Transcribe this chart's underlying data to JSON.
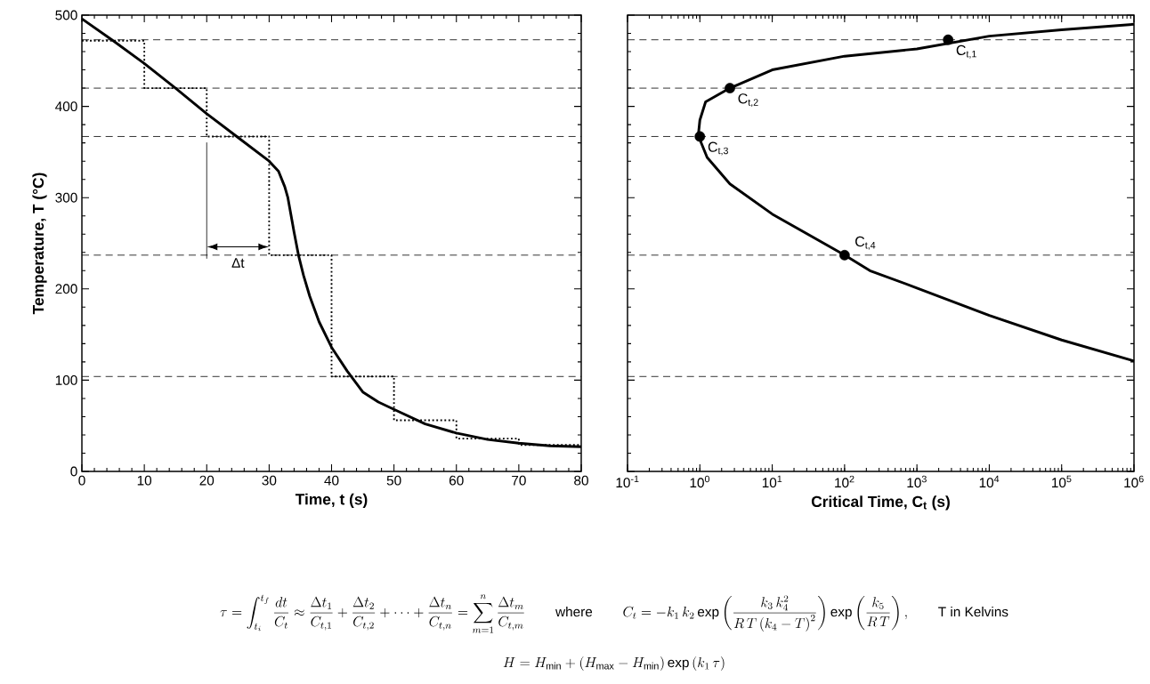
{
  "chart_data": [
    {
      "type": "line",
      "xlabel": "Time, t (s)",
      "ylabel": "Temperature, T (°C)",
      "xlim": [
        0,
        80
      ],
      "ylim": [
        0,
        500
      ],
      "xticks": [
        0,
        10,
        20,
        30,
        40,
        50,
        60,
        70,
        80
      ],
      "yticks": [
        0,
        100,
        200,
        300,
        400,
        500
      ],
      "series": [
        {
          "color": "#000000",
          "line_style": "solid",
          "x": [
            0,
            5,
            10,
            15,
            20,
            25,
            30,
            31.5,
            32.5,
            33,
            34,
            34.7,
            35.5,
            36.5,
            38,
            40,
            42.5,
            45,
            47.5,
            50,
            55,
            60,
            65,
            70,
            75,
            80
          ],
          "values": [
            496,
            472,
            447,
            420,
            392,
            366,
            340,
            329,
            312,
            300,
            262,
            237,
            215,
            192,
            164,
            136,
            110,
            87,
            76,
            68,
            52,
            42,
            35,
            31,
            28,
            27
          ]
        },
        {
          "type": "step",
          "color": "#000000",
          "line_style": "dotted",
          "x": [
            0,
            10,
            20,
            30,
            40,
            50,
            60,
            70,
            80
          ],
          "values": [
            472,
            420,
            367,
            237,
            104,
            56,
            36,
            29,
            29
          ]
        }
      ],
      "ref_lines": [
        {
          "axis": "y",
          "value": 473,
          "line_style": "dashed"
        },
        {
          "axis": "y",
          "value": 420,
          "line_style": "dashed"
        },
        {
          "axis": "y",
          "value": 367,
          "line_style": "dashed"
        },
        {
          "axis": "y",
          "value": 237,
          "line_style": "dashed"
        },
        {
          "axis": "y",
          "value": 104,
          "line_style": "dashed"
        }
      ],
      "annotations": [
        "Δt"
      ]
    },
    {
      "type": "line",
      "xlabel": "Critical Time, C$_{t}$ (s)",
      "log": "x",
      "xlim": [
        0.1,
        1000000
      ],
      "ylim": [
        0,
        500
      ],
      "tick_labels": "x",
      "xticks": [
        {
          "value": 0.1,
          "label": "10$^{-1}$"
        },
        {
          "value": 1,
          "label": "10$^{0}$"
        },
        {
          "value": 10,
          "label": "10$^{1}$"
        },
        {
          "value": 100,
          "label": "10$^{2}$"
        },
        {
          "value": 1000,
          "label": "10$^{3}$"
        },
        {
          "value": 10000,
          "label": "10$^{4}$"
        },
        {
          "value": 100000,
          "label": "10$^{5}$"
        },
        {
          "value": 1000000,
          "label": "10$^{6}$"
        }
      ],
      "yticks": [
        0,
        100,
        200,
        300,
        400,
        500
      ],
      "series": [
        {
          "color": "#000000",
          "line_style": "solid",
          "x": [
            1000000,
            100000,
            10000,
            1000,
            100,
            10,
            2.6,
            1.2,
            1.0,
            0.95,
            1.26,
            2.6,
            10,
            100,
            224,
            1000,
            10000,
            100000,
            1000000
          ],
          "values": [
            490,
            484,
            477,
            463,
            455,
            440,
            420,
            405,
            385,
            368,
            344,
            315,
            282,
            237,
            220,
            201,
            171,
            144,
            121
          ]
        },
        {
          "type": "scatter",
          "color": "#000000",
          "marker": "circle",
          "x": [
            2700,
            2.6,
            1.0,
            100
          ],
          "values": [
            473,
            420,
            367,
            237
          ]
        }
      ],
      "ref_lines": [
        {
          "axis": "y",
          "value": 473,
          "line_style": "dashed"
        },
        {
          "axis": "y",
          "value": 420,
          "line_style": "dashed"
        },
        {
          "axis": "y",
          "value": 367,
          "line_style": "dashed"
        },
        {
          "axis": "y",
          "value": 237,
          "line_style": "dashed"
        },
        {
          "axis": "y",
          "value": 104,
          "line_style": "dashed"
        }
      ],
      "annotations": [
        {
          "text": "C$_{t,1}$",
          "x": 2700,
          "y": 473
        },
        {
          "text": "C$_{t,2}$",
          "x": 2.6,
          "y": 420
        },
        {
          "text": "C$_{t,3}$",
          "x": 1.0,
          "y": 367
        },
        {
          "text": "C$_{t,4}$",
          "x": 100,
          "y": 237
        },
        "\\tau = \\int_{t_i}^{t_f} \\frac{dt}{C_t} \\approx \\frac{\\Delta t_1}{C_{t,1}} + \\frac{\\Delta t_2}{C_{t,2}} + \\cdots + \\frac{\\Delta t_n}{C_{t,n}} = \\sum_{m=1}^{n} \\frac{\\Delta t_m}{C_{t,m}}",
        "where",
        "C_t = -k_1\\,k_2 \\exp\\left(\\frac{k_3\\,k_4^2}{R\\,T\\left(k_4 - T\\right)^2}\\right) \\exp\\left(\\frac{k_5}{R\\,T}\\right),",
        "T in Kelvins",
        "H = H_{\\min} + \\left(H_{\\max} - H_{\\min}\\right) \\exp\\left(k_1\\,\\tau\\right)"
      ]
    }
  ]
}
